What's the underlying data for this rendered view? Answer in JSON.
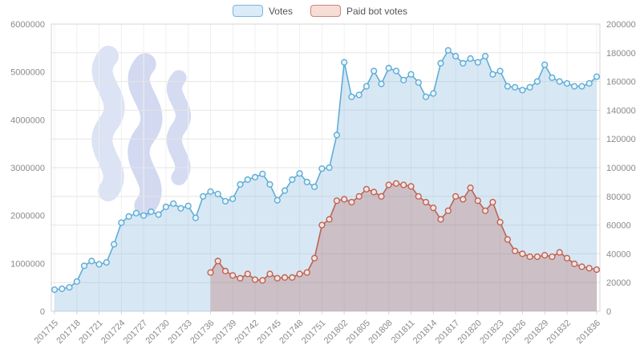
{
  "legend": {
    "votes_label": "Votes",
    "paid_label": "Paid bot votes"
  },
  "colors": {
    "votes_line": "#5fadd6",
    "votes_fill": "rgba(122,180,220,0.30)",
    "votes_point_fill": "#eaf4fb",
    "paid_line": "#bf6257",
    "paid_fill": "rgba(178,100,94,0.30)",
    "paid_point_fill": "#f6e4de",
    "grid": "#e6e6e6",
    "grid_vertical": "#f0f0f0",
    "axis_text": "#8a8a8a",
    "border": "#d4d4d4",
    "watermark": [
      "#ccd8f0",
      "#bfc9ea",
      "#c4cdec"
    ]
  },
  "chart_data": {
    "type": "line",
    "title": "",
    "legend_position": "top",
    "grid": true,
    "x_axis": {
      "tick_labels": [
        "201715",
        "201718",
        "201721",
        "201724",
        "201727",
        "201730",
        "201733",
        "201736",
        "201739",
        "201742",
        "201745",
        "201748",
        "201751",
        "201802",
        "201805",
        "201808",
        "201811",
        "201814",
        "201817",
        "201820",
        "201823",
        "201826",
        "201829",
        "201832",
        "201836"
      ]
    },
    "left_axis": {
      "min": 0,
      "max": 6000000,
      "tick_step": 1000000,
      "tick_labels": [
        "0",
        "1000000",
        "2000000",
        "3000000",
        "4000000",
        "5000000",
        "6000000"
      ]
    },
    "right_axis": {
      "min": 0,
      "max": 200000,
      "tick_step": 20000,
      "tick_labels": [
        "0",
        "20000",
        "40000",
        "60000",
        "80000",
        "100000",
        "120000",
        "140000",
        "160000",
        "180000",
        "200000"
      ]
    },
    "weeks": [
      "201715",
      "201716",
      "201717",
      "201718",
      "201719",
      "201720",
      "201721",
      "201722",
      "201723",
      "201724",
      "201725",
      "201726",
      "201727",
      "201728",
      "201729",
      "201730",
      "201731",
      "201732",
      "201733",
      "201734",
      "201735",
      "201736",
      "201737",
      "201738",
      "201739",
      "201740",
      "201741",
      "201742",
      "201743",
      "201744",
      "201745",
      "201746",
      "201747",
      "201748",
      "201749",
      "201750",
      "201751",
      "201752",
      "201801",
      "201802",
      "201803",
      "201804",
      "201805",
      "201806",
      "201807",
      "201808",
      "201809",
      "201810",
      "201811",
      "201812",
      "201813",
      "201814",
      "201815",
      "201816",
      "201817",
      "201818",
      "201819",
      "201820",
      "201821",
      "201822",
      "201823",
      "201824",
      "201825",
      "201826",
      "201827",
      "201828",
      "201829",
      "201830",
      "201831",
      "201832",
      "201833",
      "201834",
      "201835",
      "201836"
    ],
    "series": [
      {
        "name": "Votes",
        "axis": "left",
        "values": [
          450000,
          470000,
          500000,
          620000,
          950000,
          1050000,
          980000,
          1020000,
          1400000,
          1850000,
          1980000,
          2050000,
          2000000,
          2080000,
          2020000,
          2180000,
          2250000,
          2150000,
          2200000,
          1950000,
          2400000,
          2500000,
          2450000,
          2300000,
          2350000,
          2650000,
          2750000,
          2800000,
          2870000,
          2650000,
          2320000,
          2520000,
          2750000,
          2880000,
          2700000,
          2600000,
          2980000,
          3000000,
          3680000,
          5200000,
          4480000,
          4520000,
          4700000,
          5020000,
          4750000,
          5080000,
          5020000,
          4830000,
          4950000,
          4780000,
          4480000,
          4550000,
          5180000,
          5450000,
          5330000,
          5180000,
          5280000,
          5200000,
          5330000,
          4950000,
          5020000,
          4700000,
          4680000,
          4620000,
          4680000,
          4800000,
          5150000,
          4880000,
          4800000,
          4760000,
          4700000,
          4700000,
          4760000,
          4900000
        ]
      },
      {
        "name": "Paid bot votes",
        "axis": "right",
        "values": [
          null,
          null,
          null,
          null,
          null,
          null,
          null,
          null,
          null,
          null,
          null,
          null,
          null,
          null,
          null,
          null,
          null,
          null,
          null,
          null,
          null,
          27000,
          35000,
          28000,
          25000,
          23000,
          26000,
          22000,
          21500,
          26000,
          23000,
          23500,
          23500,
          26000,
          27000,
          37000,
          60000,
          64000,
          77000,
          78000,
          76000,
          80000,
          85000,
          83000,
          80000,
          88000,
          89000,
          88000,
          87000,
          80000,
          76000,
          72000,
          64000,
          70000,
          80000,
          78000,
          86000,
          77000,
          70000,
          76000,
          62000,
          50000,
          42000,
          40000,
          38000,
          38000,
          39000,
          38000,
          41000,
          37000,
          33000,
          31000,
          30000,
          29000
        ]
      }
    ]
  }
}
